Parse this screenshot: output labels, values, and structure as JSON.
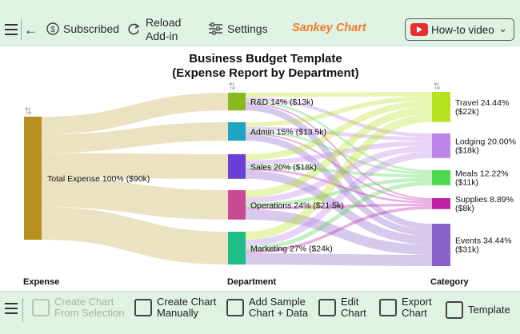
{
  "toolbar": {
    "subscribed_label": "Subscribed",
    "reload_label": "Reload\nAdd-in",
    "settings_label": "Settings",
    "brand": "Sankey Chart",
    "howto_label": "How-to video"
  },
  "bottom_toolbar": {
    "create_from_selection": "Create Chart\nFrom Selection",
    "create_manually": "Create Chart\nManually",
    "add_sample": "Add Sample\nChart + Data",
    "edit_chart": "Edit\nChart",
    "export_chart": "Export\nChart",
    "template": "Template"
  },
  "colors": {
    "toolbar_bg": "#dff3e4",
    "brand": "#f47a2c",
    "link": "#e9ddb7"
  },
  "chart_data": {
    "type": "sankey",
    "title_line1": "Business Budget Template",
    "title_line2": "(Expense Report by Department)",
    "columns": [
      "Expense",
      "Department",
      "Category"
    ],
    "total": 90,
    "source": {
      "label": "Total Expense 100% ($90k)",
      "value": 90,
      "color": "#b8901f"
    },
    "departments": [
      {
        "label": "R&D 14% ($13k)",
        "value": 13,
        "color": "#8ab81f"
      },
      {
        "label": "Admin 15% ($13.5k)",
        "value": 13.5,
        "color": "#1fa5c3"
      },
      {
        "label": "Sales 20% ($18k)",
        "value": 18,
        "color": "#6b3fd6"
      },
      {
        "label": "Operations 24% ($21.5k)",
        "value": 21.5,
        "color": "#c84a93"
      },
      {
        "label": "Marketing 27% ($24k)",
        "value": 24,
        "color": "#21bd89"
      }
    ],
    "categories": [
      {
        "label_line1": "Travel 24.44%",
        "label_line2": "($22k)",
        "value": 22,
        "color": "#b7e21f"
      },
      {
        "label_line1": "Lodging 20.00%",
        "label_line2": "($18k)",
        "value": 18,
        "color": "#be85e8"
      },
      {
        "label_line1": "Meals 12.22%",
        "label_line2": "($11k)",
        "value": 11,
        "color": "#4ed84c"
      },
      {
        "label_line1": "Supplies 8.89%",
        "label_line2": "($8k)",
        "value": 8,
        "color": "#c020a8"
      },
      {
        "label_line1": "Events 34.44%",
        "label_line2": "($31k)",
        "value": 31,
        "color": "#8a63c8"
      }
    ]
  }
}
